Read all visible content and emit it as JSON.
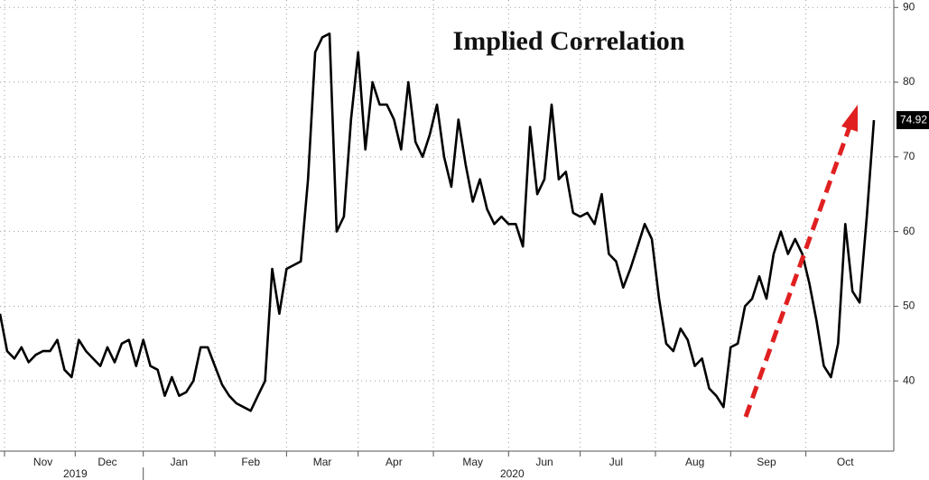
{
  "chart_data": {
    "type": "line",
    "title": "Implied Correlation",
    "categories": [
      null,
      null,
      null,
      null,
      null,
      null,
      "Nov",
      null,
      null,
      null,
      null,
      null,
      null,
      null,
      null,
      "Dec",
      null,
      null,
      null,
      null,
      null,
      null,
      null,
      null,
      null,
      "Jan",
      null,
      null,
      null,
      null,
      null,
      null,
      null,
      null,
      null,
      "Feb",
      null,
      null,
      null,
      null,
      null,
      null,
      null,
      null,
      null,
      "Mar",
      null,
      null,
      null,
      null,
      null,
      null,
      null,
      null,
      null,
      "Apr",
      null,
      null,
      null,
      null,
      null,
      null,
      null,
      null,
      null,
      null,
      "May",
      null,
      null,
      null,
      null,
      null,
      null,
      null,
      null,
      null,
      "Jun",
      null,
      null,
      null,
      null,
      null,
      null,
      null,
      null,
      null,
      "Jul",
      null,
      null,
      null,
      null,
      null,
      null,
      null,
      null,
      null,
      null,
      "Aug",
      null,
      null,
      null,
      null,
      null,
      null,
      null,
      null,
      null,
      "Sep",
      null,
      null,
      null,
      null,
      null,
      null,
      null,
      null,
      null,
      null,
      "Oct",
      null,
      null,
      null,
      null
    ],
    "year_labels": [
      "2019",
      "2020"
    ],
    "values": [
      49,
      44,
      43,
      44.5,
      42.5,
      43.5,
      44,
      44,
      45.5,
      41.5,
      40.5,
      45.5,
      44,
      43,
      42,
      44.5,
      42.5,
      45,
      45.5,
      42,
      45.5,
      42,
      41.5,
      38,
      40.5,
      38,
      38.5,
      40,
      44.5,
      44.5,
      42,
      39.5,
      38,
      37,
      36.5,
      36,
      38,
      40,
      55,
      49,
      55,
      55.5,
      56,
      67,
      84,
      86,
      86.5,
      60,
      62,
      75,
      84,
      71,
      80,
      77,
      77,
      75,
      71,
      80,
      72,
      70,
      73,
      77,
      70,
      66,
      75,
      69,
      64,
      67,
      63,
      61,
      62,
      61,
      61,
      58,
      74,
      65,
      67,
      77,
      67,
      68,
      62.5,
      62,
      62.5,
      61,
      65,
      57,
      56,
      52.5,
      55,
      58,
      61,
      59,
      51,
      45,
      44,
      47,
      45.5,
      42,
      43,
      39,
      38,
      36.5,
      44.5,
      45,
      50,
      51,
      54,
      51,
      57,
      60,
      57,
      59,
      57,
      53,
      48,
      42,
      40.5,
      45,
      61,
      52,
      50.5,
      62,
      74.92
    ],
    "color": "#000000",
    "ylim": [
      30.6,
      91
    ],
    "yticks": [
      40,
      50,
      60,
      70,
      80,
      90
    ],
    "grid": true
  }
}
